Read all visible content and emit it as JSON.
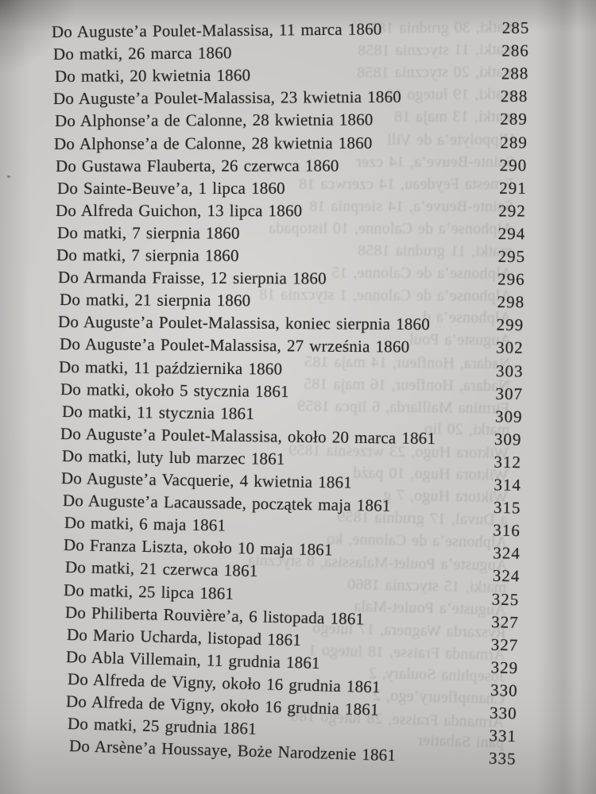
{
  "page": {
    "description": "Photographed table-of-contents page from a Polish edition of Baudelaire's collected letters",
    "paper_color": "#cbc9c6",
    "ink_color": "#292724",
    "entries": [
      {
        "title": "Do Auguste’a Poulet-Malassisa, 11 marca 1860",
        "page": "285"
      },
      {
        "title": "Do matki, 26 marca 1860",
        "page": "286"
      },
      {
        "title": "Do matki, 20 kwietnia 1860",
        "page": "288"
      },
      {
        "title": "Do Auguste’a Poulet-Malassisa, 23 kwietnia 1860",
        "page": "288"
      },
      {
        "title": "Do Alphonse’a de Calonne, 28 kwietnia 1860",
        "page": "289"
      },
      {
        "title": "Do Alphonse’a de Calonne, 28 kwietnia 1860",
        "page": "289"
      },
      {
        "title": "Do Gustawa Flauberta, 26 czerwca 1860",
        "page": "290"
      },
      {
        "title": "Do Sainte-Beuve’a, 1 lipca 1860",
        "page": "291"
      },
      {
        "title": "Do Alfreda Guichon, 13 lipca 1860",
        "page": "292"
      },
      {
        "title": "Do matki, 7 sierpnia 1860",
        "page": "294"
      },
      {
        "title": "Do matki, 7 sierpnia 1860",
        "page": "295"
      },
      {
        "title": "Do Armanda Fraisse, 12 sierpnia 1860",
        "page": "296"
      },
      {
        "title": "Do matki, 21 sierpnia 1860",
        "page": "298"
      },
      {
        "title": "Do Auguste’a Poulet-Malassisa, koniec sierpnia 1860",
        "page": "299"
      },
      {
        "title": "Do Auguste’a Poulet-Malassisa, 27 września 1860",
        "page": "302"
      },
      {
        "title": "Do matki, 11 października 1860",
        "page": "303"
      },
      {
        "title": "Do matki, około 5 stycznia 1861",
        "page": "307"
      },
      {
        "title": "Do matki, 11 stycznia 1861",
        "page": "309"
      },
      {
        "title": "Do Auguste’a Poulet-Malassisa, około 20 marca 1861",
        "page": "309"
      },
      {
        "title": "Do matki, luty lub marzec 1861",
        "page": "312"
      },
      {
        "title": "Do Auguste’a Vacquerie, 4 kwietnia 1861",
        "page": "314"
      },
      {
        "title": "Do Auguste’a Lacaussade, początek maja 1861",
        "page": "315"
      },
      {
        "title": "Do matki, 6 maja 1861",
        "page": "316"
      },
      {
        "title": "Do Franza Liszta, około 10 maja 1861",
        "page": "324"
      },
      {
        "title": "Do matki, 21 czerwca 1861",
        "page": "324"
      },
      {
        "title": "Do matki, 25 lipca 1861",
        "page": "325"
      },
      {
        "title": "Do Philiberta Rouvière’a, 6 listopada 1861",
        "page": "327"
      },
      {
        "title": "Do Mario Ucharda, listopad 1861",
        "page": "327"
      },
      {
        "title": "Do Abla Villemain, 11 grudnia 1861",
        "page": "329"
      },
      {
        "title": "Do Alfreda de Vigny, około 16 grudnia 1861",
        "page": "330"
      },
      {
        "title": "Do Alfreda de Vigny, około 16 grudnia 1861",
        "page": "330"
      },
      {
        "title": "Do matki, 25 grudnia 1861",
        "page": "331"
      },
      {
        "title": "Do Arsène’a Houssaye, Boże Narodzenie 1861",
        "page": "335"
      }
    ],
    "bleedthrough": [
      "matki, 30 grudnia 185",
      "matki, 11 stycznia 1858",
      "matki, 20 stycznia 1858",
      "matki, 19 lutego 18",
      "matki, 13 maja 18",
      "Hippolyte’a de Vill",
      "Sainte-Beuve’a, 14 czer",
      "Ernesta Feydeau, 14 czerwca 18",
      "Sainte-Beuve’a, 14 sierpnia 18",
      "Alphonse’a de Calonne, 10 listopada",
      "matki, 11 grudnia 1858",
      "Alphonse’a de Calonne, 15",
      "Alphonse’a de Calonne, 1 stycznia 18",
      "Alphonse’a d",
      "Auguste’a Poul",
      "Nadara, Honfleur, 14 maja 185",
      "Nadara, Honfleur, 16 maja 185",
      "Firmina Maillarda, 6 lipca 1859",
      "matki, 20 lip",
      "Wiktora Hugo, 23 września 1859",
      "Wiktora Hugo, 10 paźd",
      "Wiktora Hugo, 7 g",
      "a Duval, 17 grudnia 1859",
      "Alphonse’a de Calonne, ko",
      "Auguste’a Poulet-Malassisa, 8 stycznia",
      "matki, 15 stycznia 1860",
      "Auguste’a Poulet-Mala",
      "Ryszarda Wagnera, 17 lutego",
      "Armanda Fraisse, 18 lutego 1",
      "Josephina Soulary, 2",
      "Champfleury’ego, 2",
      "Armanda Fraisse, 28 lutego 186",
      "pani Sabatier"
    ]
  }
}
